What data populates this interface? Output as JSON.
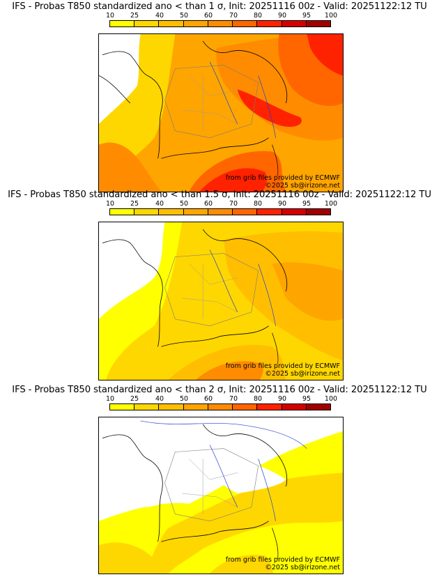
{
  "colorbar": {
    "ticks": [
      "10",
      "25",
      "40",
      "50",
      "60",
      "70",
      "80",
      "90",
      "95",
      "100"
    ],
    "colors": [
      "#ffff00",
      "#ffd700",
      "#ffbf00",
      "#ffa500",
      "#ff8c00",
      "#ff6600",
      "#ff2200",
      "#d40000",
      "#a00000",
      "#6a0000"
    ]
  },
  "panels": [
    {
      "title": "IFS - Probas T850  standardized ano < than 1 σ, Init: 20251116 00z - Valid: 20251122:12 TU",
      "credit_source": "from grib files provided by ECMWF",
      "credit_copyright": "©2025 sb@irizone.net"
    },
    {
      "title": "IFS - Probas T850  standardized ano < than 1.5 σ, Init: 20251116 00z - Valid: 20251122:12 TU",
      "credit_source": "from grib files provided by ECMWF",
      "credit_copyright": "©2025 sb@irizone.net"
    },
    {
      "title": "IFS - Probas T850  standardized ano < than 2 σ, Init: 20251116 00z - Valid: 20251122:12 TU",
      "credit_source": "from grib files provided by ECMWF",
      "credit_copyright": "©2025 sb@irizone.net"
    }
  ]
}
